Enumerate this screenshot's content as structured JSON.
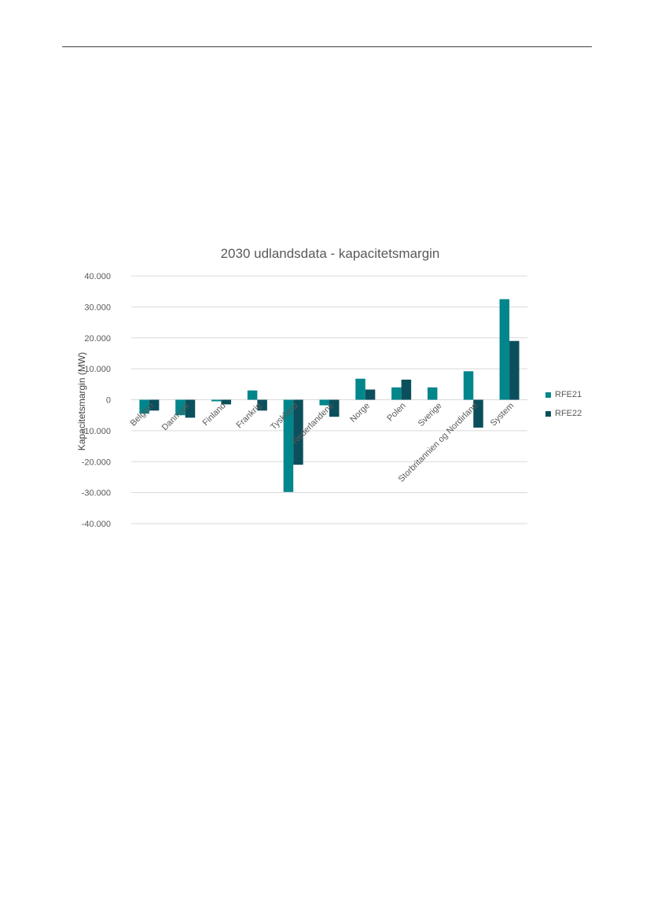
{
  "chart_data": {
    "type": "bar",
    "title": "2030 udlandsdata - kapacitetsmargin",
    "ylabel": "Kapacitetsmargin (MW)",
    "xlabel": "",
    "ylim": [
      -40000,
      40000
    ],
    "yticks": [
      40000,
      30000,
      20000,
      10000,
      0,
      -10000,
      -20000,
      -30000,
      -40000
    ],
    "ytick_labels": [
      "40.000",
      "30.000",
      "20.000",
      "10.000",
      "0",
      "-10.000",
      "-20.000",
      "-30.000",
      "-40.000"
    ],
    "grid": true,
    "legend_position": "right",
    "categories": [
      "Belgien",
      "Danmark",
      "Finland",
      "Frankrig",
      "Tyskland",
      "Nederlandene",
      "Norge",
      "Polen",
      "Sverige",
      "Storbritannien og Nordirland",
      "System"
    ],
    "series": [
      {
        "name": "RFE21",
        "color": "#00868B",
        "values": [
          -4500,
          -5000,
          -500,
          3000,
          -29800,
          -1800,
          6800,
          4000,
          4000,
          9200,
          32500
        ]
      },
      {
        "name": "RFE22",
        "color": "#0B4F5C",
        "values": [
          -3500,
          -5800,
          -1500,
          -3500,
          -21000,
          -5500,
          3300,
          6500,
          0,
          -9000,
          19000
        ]
      }
    ]
  }
}
